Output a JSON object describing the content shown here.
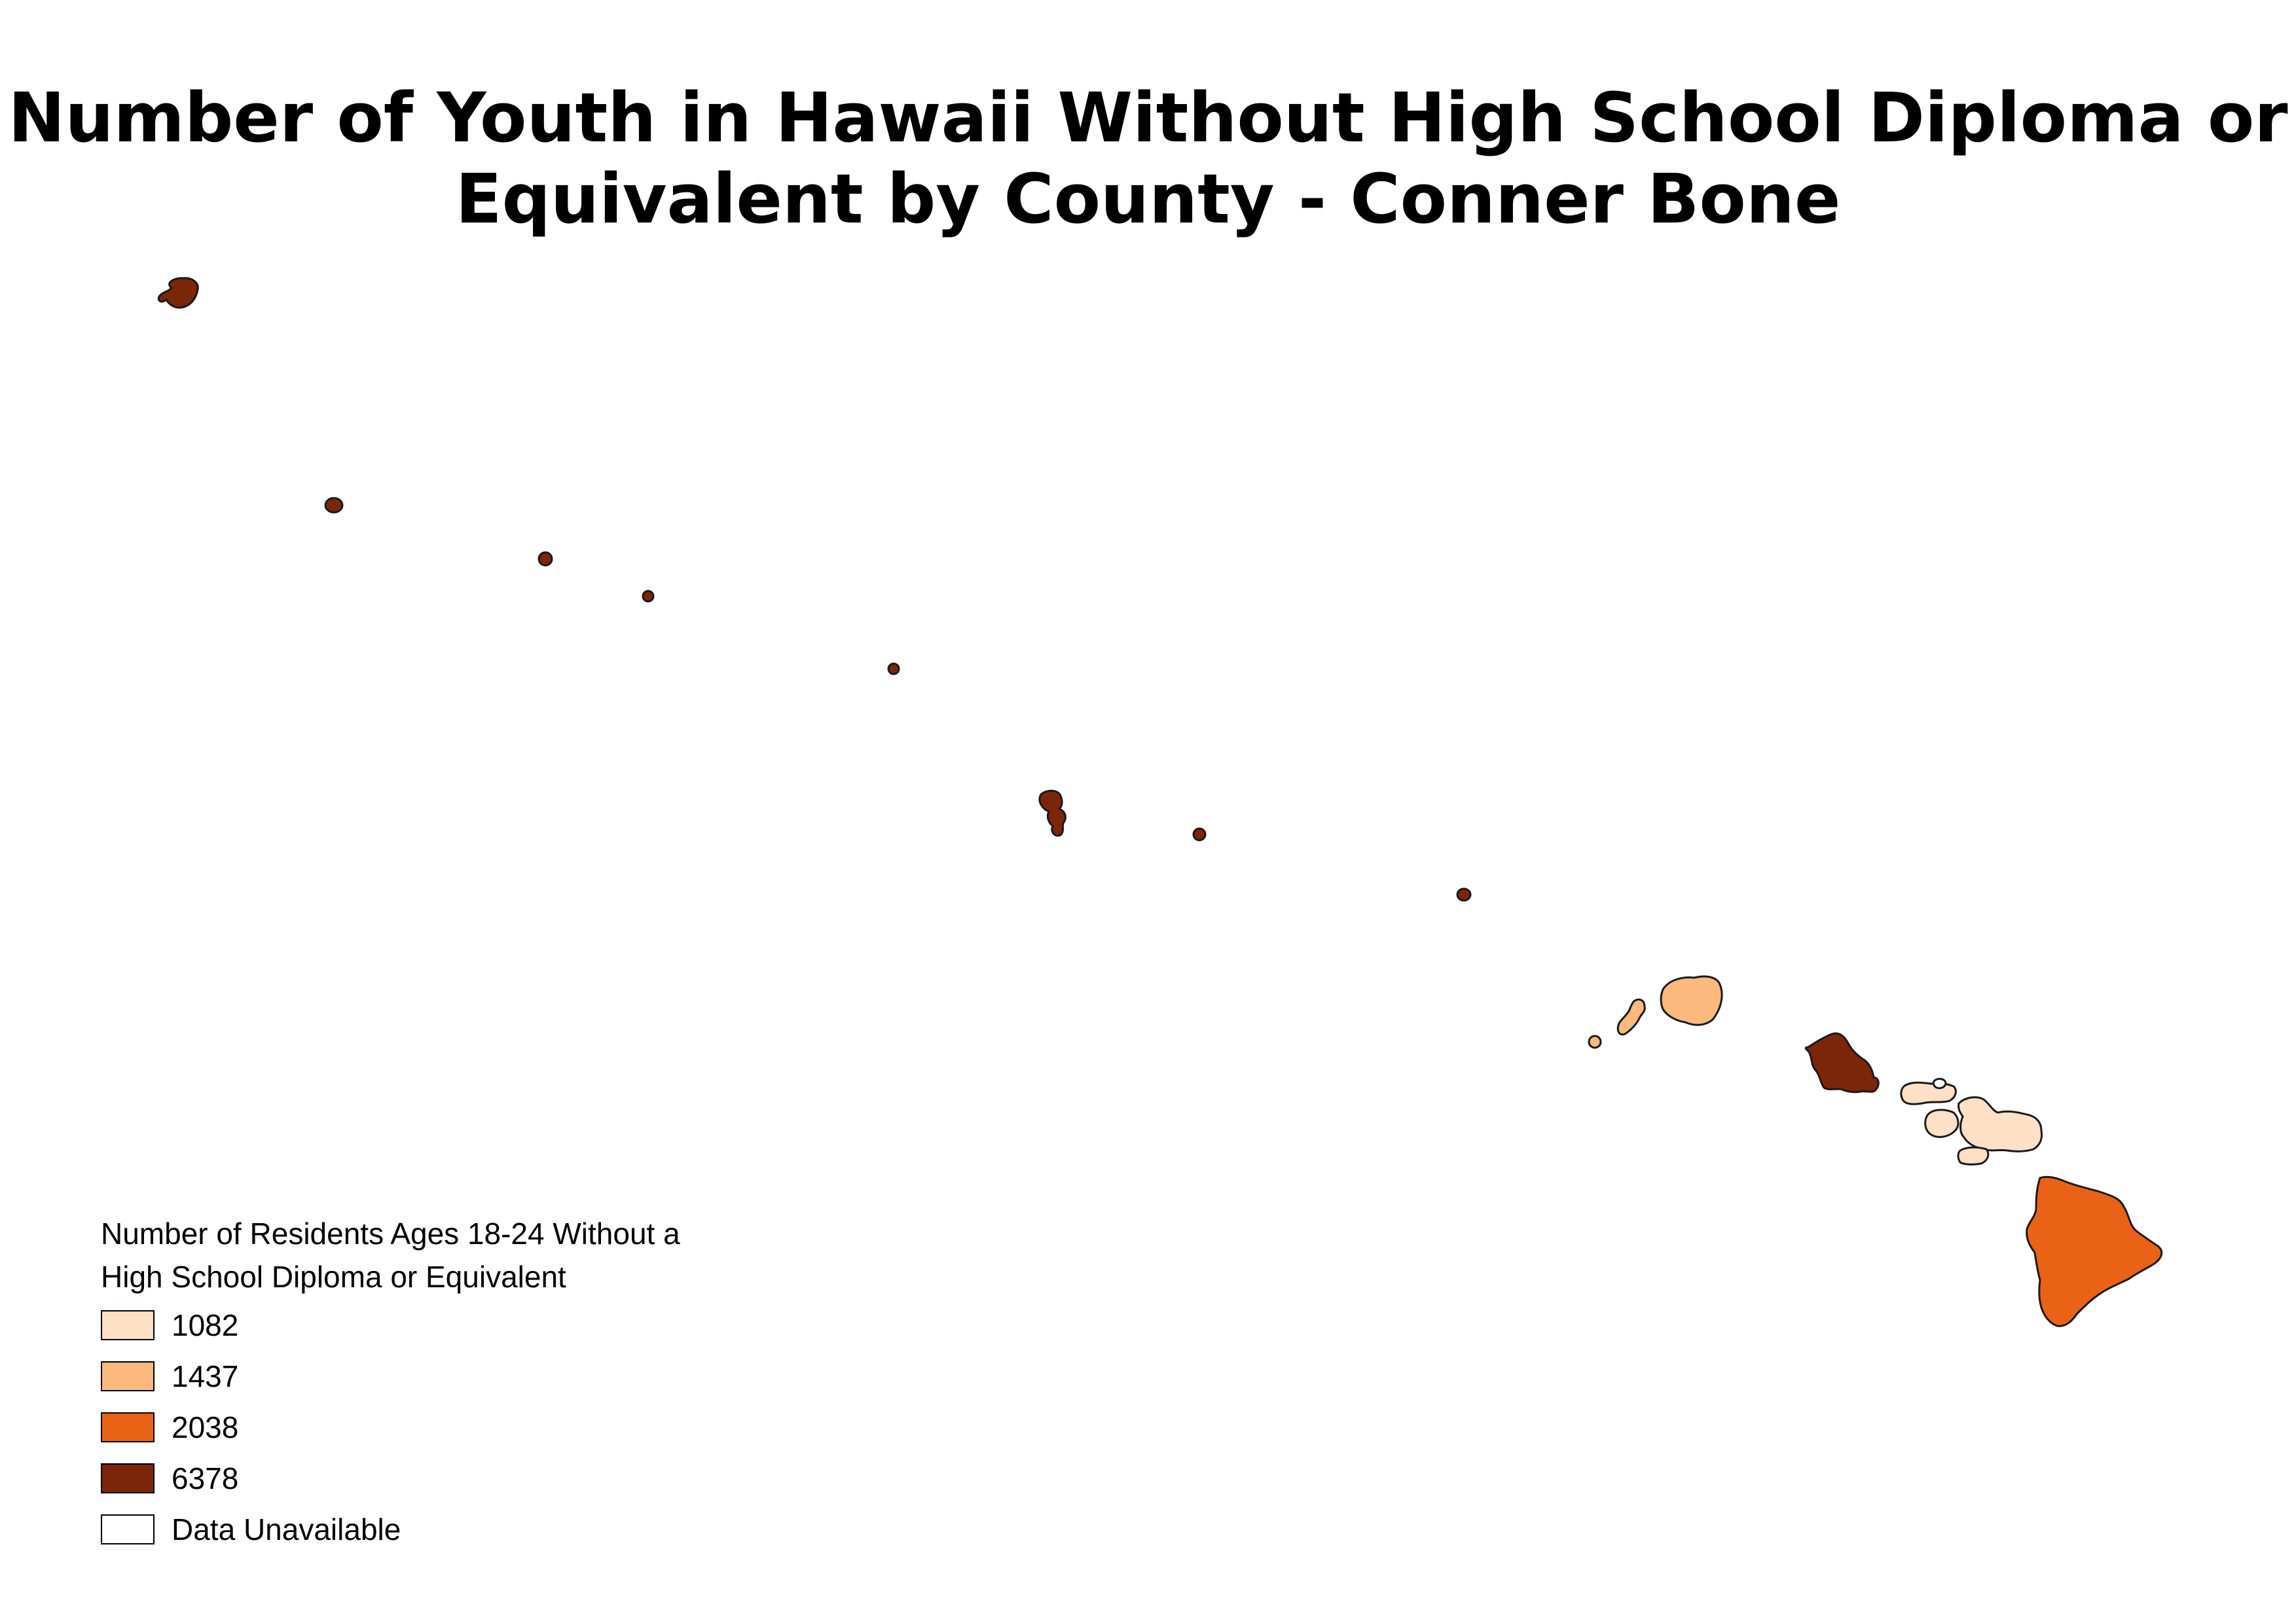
{
  "title": {
    "line1": "Number of Youth in Hawaii Without High School Diploma or",
    "line2": "Equivalent by County - Conner Bone"
  },
  "legend": {
    "title_line1": "Number of Residents Ages 18-24 Without a",
    "title_line2": "High School Diploma or Equivalent",
    "items": [
      {
        "label": "1082",
        "color": "#fde0c5"
      },
      {
        "label": "1437",
        "color": "#fbb97e"
      },
      {
        "label": "2038",
        "color": "#ea6215"
      },
      {
        "label": "6378",
        "color": "#7b2509"
      },
      {
        "label": "Data Unavailable",
        "color": "#ffffff"
      }
    ]
  },
  "map": {
    "regions": [
      {
        "name": "Honolulu County (Oahu + Northwestern Islands)",
        "value": 6378,
        "color": "#7b2509"
      },
      {
        "name": "Kauai County",
        "value": 1437,
        "color": "#fbb97e"
      },
      {
        "name": "Maui County",
        "value": 1082,
        "color": "#fde0c5"
      },
      {
        "name": "Hawaii County",
        "value": 2038,
        "color": "#ea6215"
      },
      {
        "name": "Kalawao County",
        "value": null,
        "color": "#ffffff"
      }
    ]
  }
}
